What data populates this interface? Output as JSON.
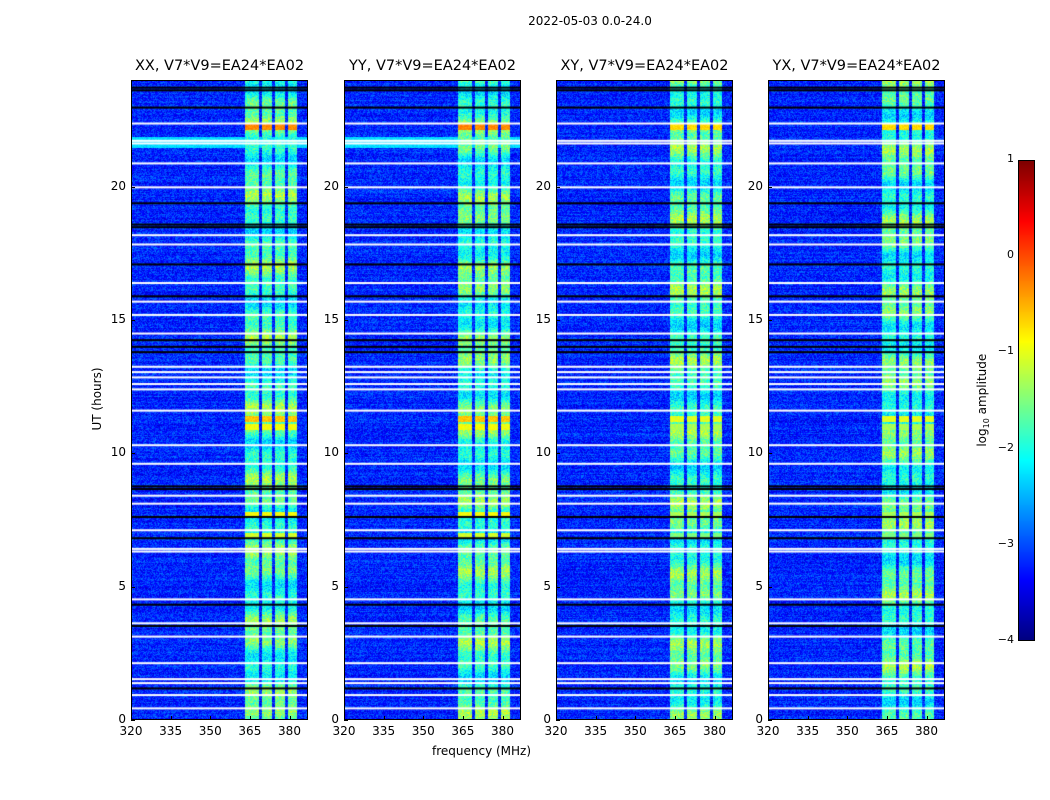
{
  "chart_data": {
    "type": "heatmap",
    "title": "2022-05-03 0.0-24.0",
    "xlabel": "frequency (MHz)",
    "ylabel": "UT (hours)",
    "xlim": [
      320,
      387
    ],
    "ylim": [
      0,
      24
    ],
    "xticks": [
      "320",
      "335",
      "350",
      "365",
      "380"
    ],
    "xtick_values": [
      320,
      335,
      350,
      365,
      380
    ],
    "yticks": [
      "0",
      "5",
      "10",
      "15",
      "20"
    ],
    "ytick_values": [
      0,
      5,
      10,
      15,
      20
    ],
    "panels": [
      {
        "title": "XX, V7*V9=EA24*EA02"
      },
      {
        "title": "YY, V7*V9=EA24*EA02"
      },
      {
        "title": "XY, V7*V9=EA24*EA02"
      },
      {
        "title": "YX, V7*V9=EA24*EA02"
      }
    ],
    "colorbar": {
      "label": "log10 amplitude",
      "label_main": "log",
      "label_sub": "10",
      "label_rest": " amplitude",
      "range": [
        -4,
        1
      ],
      "ticks": [
        "1",
        "0",
        "−1",
        "−2",
        "−3",
        "−4"
      ],
      "tick_values": [
        1,
        0,
        -1,
        -2,
        -3,
        -4
      ],
      "colormap": "jet"
    },
    "background_level": -3.2,
    "rfi_bands_mhz": [
      [
        363,
        368.5
      ],
      [
        369.5,
        373.5
      ],
      [
        374.5,
        378.5
      ],
      [
        379.5,
        383
      ]
    ],
    "rfi_level": -1.8,
    "hotspots_hours": [
      {
        "t": 22.3,
        "level": -0.3
      },
      {
        "t": 11.3,
        "level": -0.6
      },
      {
        "t": 11.0,
        "level": -0.9
      },
      {
        "t": 7.7,
        "level": -0.9
      },
      {
        "t": 6.9,
        "level": -1.1
      }
    ],
    "flagged_white_hours": [
      22.4,
      21.75,
      21.65,
      20.9,
      20.0,
      18.2,
      17.85,
      16.4,
      15.7,
      15.2,
      14.5,
      13.25,
      13.05,
      12.85,
      12.6,
      12.4,
      11.6,
      10.3,
      9.6,
      8.4,
      8.1,
      7.1,
      6.4,
      6.3,
      4.5,
      3.6,
      3.1,
      2.1,
      1.5,
      1.35,
      0.9,
      0.4
    ],
    "flagged_black_hours": [
      23.75,
      23.65,
      23.0,
      19.4,
      18.6,
      18.5,
      17.1,
      15.9,
      14.25,
      14.0,
      13.8,
      8.75,
      8.65,
      7.6,
      6.8,
      4.3,
      3.5,
      1.15
    ]
  }
}
